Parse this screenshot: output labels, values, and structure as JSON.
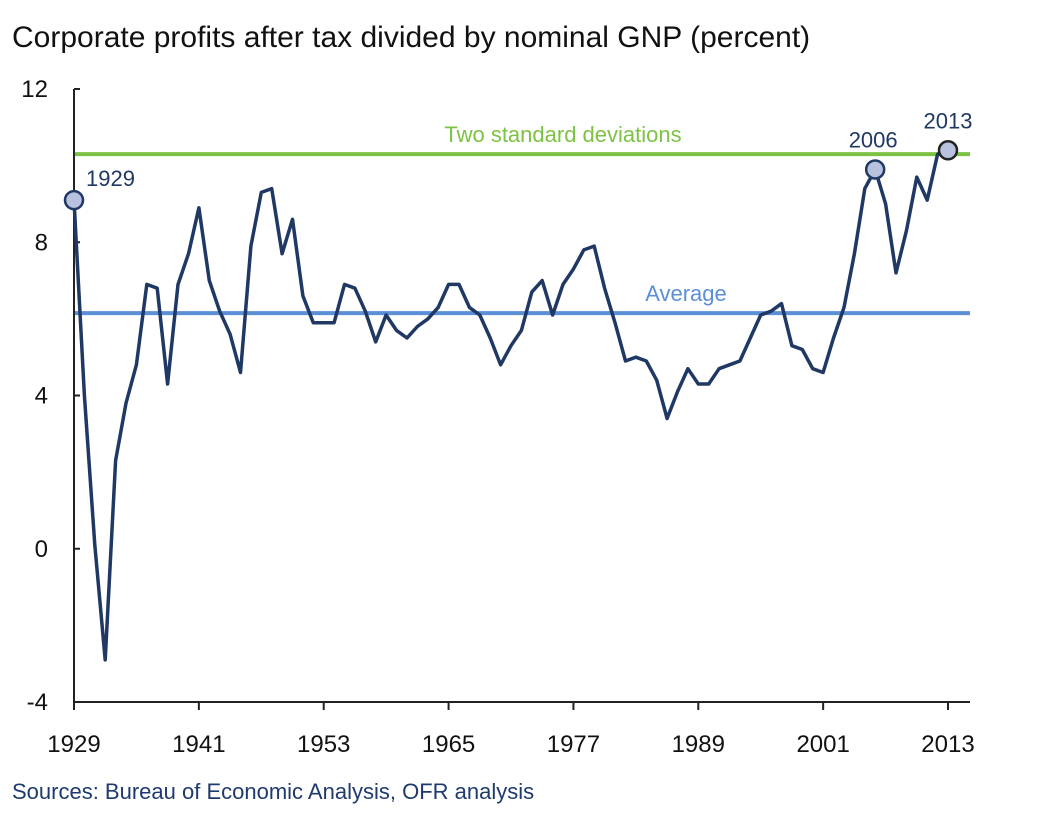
{
  "chart_data": {
    "type": "line",
    "title": "Corporate profits after tax divided by nominal GNP (percent)",
    "source": "Sources: Bureau of Economic Analysis, OFR analysis",
    "xlabel": "",
    "ylabel": "",
    "xlim": [
      1929,
      2013
    ],
    "ylim": [
      -4,
      12
    ],
    "yticks": [
      "-4",
      "0",
      "4",
      "8",
      "12"
    ],
    "ytick_values": [
      -4,
      0,
      4,
      8,
      12
    ],
    "xticks": [
      "1929",
      "1941",
      "1953",
      "1965",
      "1977",
      "1989",
      "2001",
      "2013"
    ],
    "xtick_values": [
      1929,
      1941,
      1953,
      1965,
      1977,
      1989,
      2001,
      2013
    ],
    "grid": false,
    "start_year": 1929,
    "series": [
      {
        "name": "Corporate profits after tax / nominal GNP",
        "color": "#1f3864",
        "values": [
          9.1,
          4.0,
          0.1,
          -2.9,
          2.3,
          3.8,
          4.8,
          6.9,
          6.8,
          4.3,
          6.9,
          7.7,
          8.9,
          7.0,
          6.2,
          5.6,
          4.6,
          7.9,
          9.3,
          9.4,
          7.7,
          8.6,
          6.6,
          5.9,
          5.9,
          5.9,
          6.9,
          6.8,
          6.2,
          5.4,
          6.1,
          5.7,
          5.5,
          5.8,
          6.0,
          6.3,
          6.9,
          6.9,
          6.3,
          6.1,
          5.5,
          4.8,
          5.3,
          5.7,
          6.7,
          7.0,
          6.1,
          6.9,
          7.3,
          7.8,
          7.9,
          6.8,
          5.9,
          4.9,
          5.0,
          4.9,
          4.4,
          3.4,
          4.1,
          4.7,
          4.3,
          4.3,
          4.7,
          4.8,
          4.9,
          5.5,
          6.1,
          6.2,
          6.4,
          5.3,
          5.2,
          4.7,
          4.6,
          5.5,
          6.3,
          7.7,
          9.4,
          9.9,
          9.0,
          7.2,
          8.3,
          9.7,
          9.1,
          10.3,
          10.4
        ]
      }
    ],
    "reference_lines": [
      {
        "label": "Two standard deviations",
        "value": 10.3,
        "color": "#7dc242"
      },
      {
        "label": "Average",
        "value": 6.15,
        "color": "#5b8fd6"
      }
    ],
    "highlighted_points": [
      {
        "label": "1929",
        "year": 1929
      },
      {
        "label": "2006",
        "year": 2006
      },
      {
        "label": "2013",
        "year": 2013
      }
    ]
  }
}
